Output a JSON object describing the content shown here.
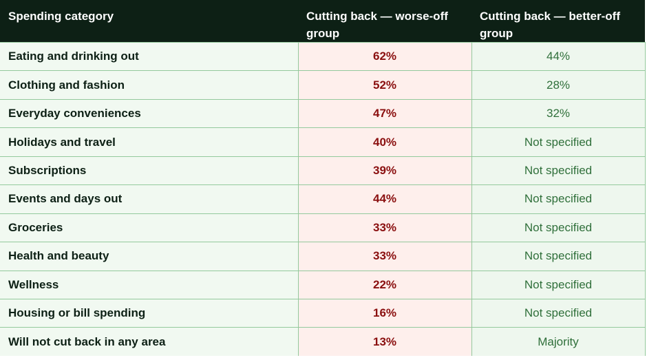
{
  "table": {
    "headers": [
      "Spending category",
      "Cutting back — worse-off group",
      "Cutting back — better-off group"
    ],
    "rows": [
      {
        "category": "Eating and drinking out",
        "worse_off": "62%",
        "better_off": "44%"
      },
      {
        "category": "Clothing and fashion",
        "worse_off": "52%",
        "better_off": "28%"
      },
      {
        "category": "Everyday conveniences",
        "worse_off": "47%",
        "better_off": "32%"
      },
      {
        "category": "Holidays and travel",
        "worse_off": "40%",
        "better_off": "Not specified"
      },
      {
        "category": "Subscriptions",
        "worse_off": "39%",
        "better_off": "Not specified"
      },
      {
        "category": "Events and days out",
        "worse_off": "44%",
        "better_off": "Not specified"
      },
      {
        "category": "Groceries",
        "worse_off": "33%",
        "better_off": "Not specified"
      },
      {
        "category": "Health and beauty",
        "worse_off": "33%",
        "better_off": "Not specified"
      },
      {
        "category": "Wellness",
        "worse_off": "22%",
        "better_off": "Not specified"
      },
      {
        "category": "Housing or bill spending",
        "worse_off": "16%",
        "better_off": "Not specified"
      },
      {
        "category": "Will not cut back in any area",
        "worse_off": "13%",
        "better_off": "Majority"
      }
    ]
  },
  "colors": {
    "header_bg": "#0d2015",
    "category_bg": "#f1f9f1",
    "worse_off_bg": "#feefec",
    "worse_off_text": "#8a0f0f",
    "better_off_bg": "#eef7ee",
    "better_off_text": "#2f6f3a",
    "grid": "#93c99c"
  }
}
